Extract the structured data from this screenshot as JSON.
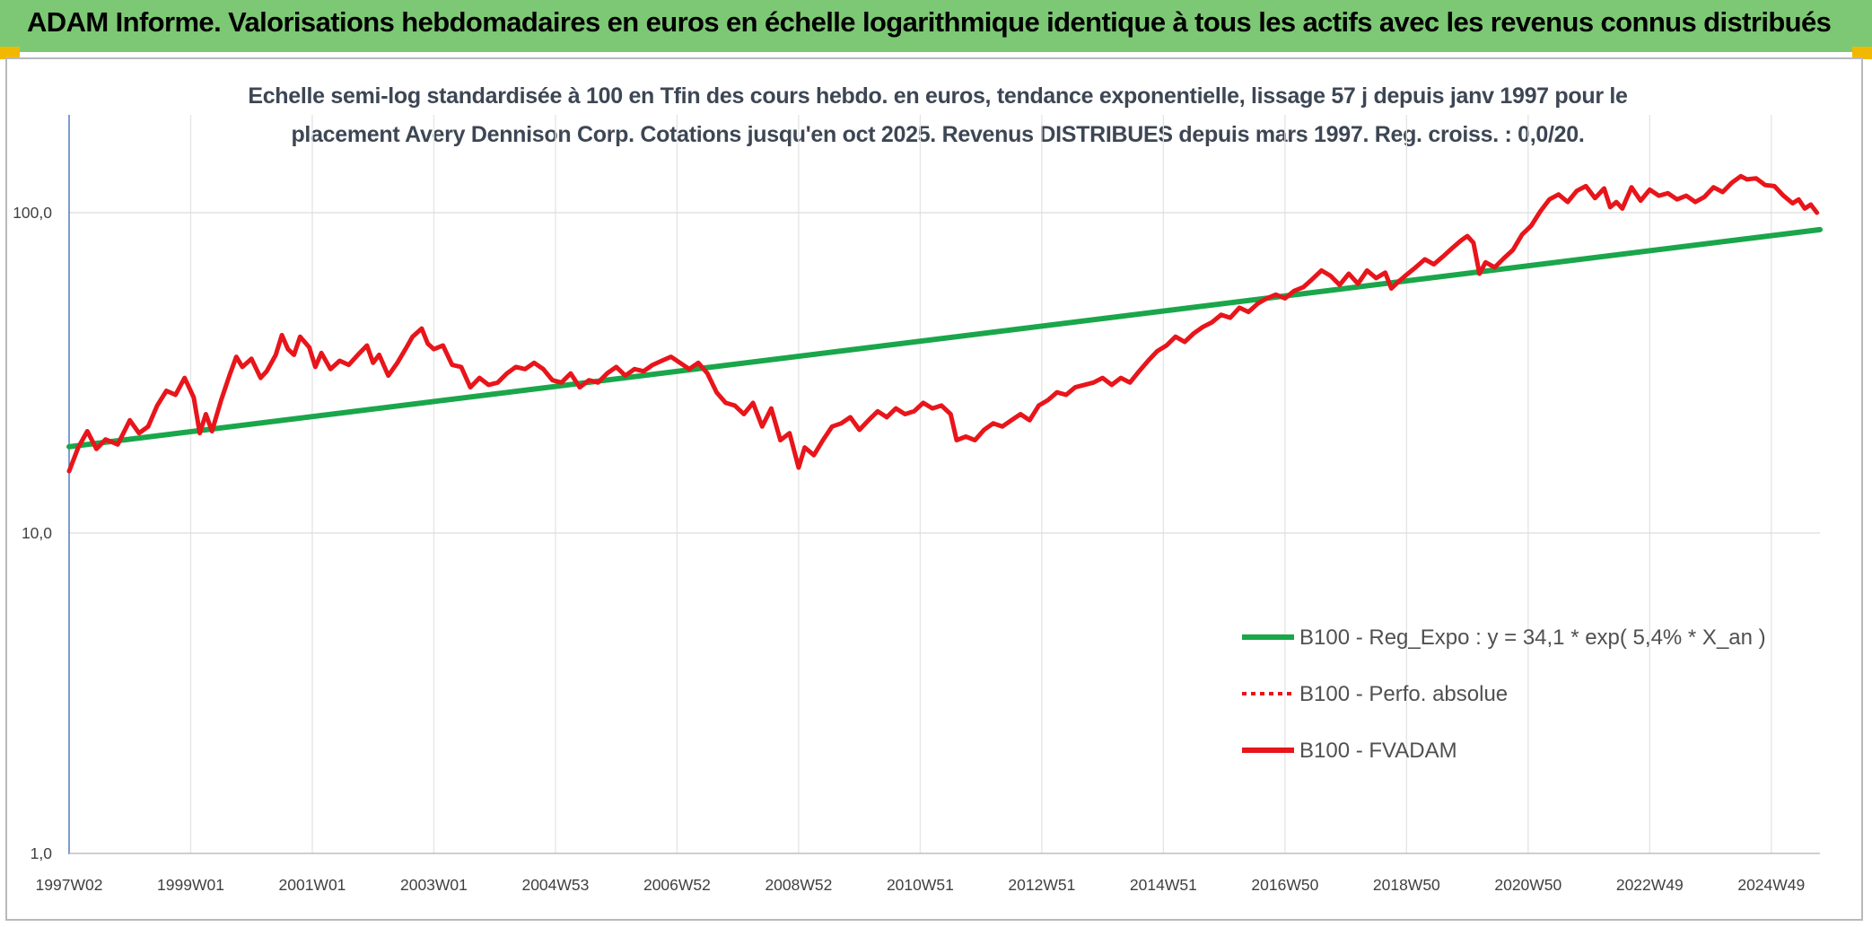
{
  "banner": {
    "title": "ADAM Informe. Valorisations hebdomadaires en euros en échelle logarithmique identique à tous les actifs avec les revenus connus distribués",
    "color": "#7dc874"
  },
  "chart_data": {
    "type": "line",
    "title_lines": [
      "Echelle semi-log standardisée à 100 en Tfin des cours hebdo. en euros, tendance exponentielle, lissage 57 j depuis janv 1997 pour le",
      "placement Avery Dennison Corp. Cotations jusqu'en oct 2025. Revenus DISTRIBUES depuis mars 1997. Reg. croiss. : 0,0/20."
    ],
    "y_scale": "log",
    "ylim": [
      1,
      200
    ],
    "y_ticks": [
      "1,0",
      "10,0",
      "100,0"
    ],
    "xlim": [
      1997.0,
      2025.8
    ],
    "x_ticks": [
      {
        "label": "1997W02",
        "x": 1997.0
      },
      {
        "label": "1999W01",
        "x": 1999.0
      },
      {
        "label": "2001W01",
        "x": 2001.0
      },
      {
        "label": "2003W01",
        "x": 2003.0
      },
      {
        "label": "2004W53",
        "x": 2005.0
      },
      {
        "label": "2006W52",
        "x": 2007.0
      },
      {
        "label": "2008W52",
        "x": 2009.0
      },
      {
        "label": "2010W51",
        "x": 2011.0
      },
      {
        "label": "2012W51",
        "x": 2013.0
      },
      {
        "label": "2014W51",
        "x": 2015.0
      },
      {
        "label": "2016W50",
        "x": 2017.0
      },
      {
        "label": "2018W50",
        "x": 2019.0
      },
      {
        "label": "2020W50",
        "x": 2021.0
      },
      {
        "label": "2022W49",
        "x": 2023.0
      },
      {
        "label": "2024W49",
        "x": 2025.0
      }
    ],
    "grid": true,
    "legend_position": "bottom-right",
    "series": [
      {
        "name": "B100 - Reg_Expo : y = 34,1 * exp( 5,4% *  X_an )",
        "color": "#1aa64a",
        "style": "solid",
        "points": [
          [
            1997.0,
            18.6
          ],
          [
            2025.8,
            88.5
          ]
        ]
      },
      {
        "name": "B100 - Perfo. absolue",
        "color": "#e8151b",
        "style": "dotted",
        "points": []
      },
      {
        "name": "B100 - FVADAM",
        "color": "#e8151b",
        "style": "solid",
        "points": [
          [
            1997.0,
            15.6
          ],
          [
            1997.15,
            18.5
          ],
          [
            1997.3,
            20.8
          ],
          [
            1997.45,
            18.3
          ],
          [
            1997.6,
            19.6
          ],
          [
            1997.8,
            18.9
          ],
          [
            1998.0,
            22.5
          ],
          [
            1998.15,
            20.5
          ],
          [
            1998.3,
            21.5
          ],
          [
            1998.45,
            25.0
          ],
          [
            1998.6,
            27.8
          ],
          [
            1998.75,
            27.0
          ],
          [
            1998.9,
            30.5
          ],
          [
            1999.05,
            26.5
          ],
          [
            1999.15,
            20.5
          ],
          [
            1999.25,
            23.5
          ],
          [
            1999.35,
            20.8
          ],
          [
            1999.5,
            26.0
          ],
          [
            1999.65,
            31.5
          ],
          [
            1999.75,
            35.5
          ],
          [
            1999.85,
            33.0
          ],
          [
            2000.0,
            35.0
          ],
          [
            2000.15,
            30.5
          ],
          [
            2000.25,
            32.0
          ],
          [
            2000.4,
            36.0
          ],
          [
            2000.5,
            41.5
          ],
          [
            2000.6,
            37.5
          ],
          [
            2000.7,
            36.0
          ],
          [
            2000.8,
            41.0
          ],
          [
            2000.95,
            38.0
          ],
          [
            2001.05,
            33.0
          ],
          [
            2001.15,
            36.5
          ],
          [
            2001.3,
            32.5
          ],
          [
            2001.45,
            34.5
          ],
          [
            2001.6,
            33.5
          ],
          [
            2001.75,
            36.0
          ],
          [
            2001.9,
            38.5
          ],
          [
            2002.0,
            34.0
          ],
          [
            2002.1,
            36.0
          ],
          [
            2002.25,
            31.0
          ],
          [
            2002.4,
            34.0
          ],
          [
            2002.55,
            38.0
          ],
          [
            2002.65,
            41.0
          ],
          [
            2002.8,
            43.5
          ],
          [
            2002.9,
            39.0
          ],
          [
            2003.0,
            37.5
          ],
          [
            2003.15,
            38.5
          ],
          [
            2003.3,
            33.5
          ],
          [
            2003.45,
            33.0
          ],
          [
            2003.6,
            28.5
          ],
          [
            2003.75,
            30.5
          ],
          [
            2003.9,
            29.0
          ],
          [
            2004.05,
            29.5
          ],
          [
            2004.2,
            31.5
          ],
          [
            2004.35,
            33.0
          ],
          [
            2004.5,
            32.5
          ],
          [
            2004.65,
            34.0
          ],
          [
            2004.8,
            32.5
          ],
          [
            2004.95,
            30.0
          ],
          [
            2005.1,
            29.5
          ],
          [
            2005.25,
            31.5
          ],
          [
            2005.4,
            28.5
          ],
          [
            2005.55,
            30.0
          ],
          [
            2005.7,
            29.5
          ],
          [
            2005.85,
            31.5
          ],
          [
            2006.0,
            33.0
          ],
          [
            2006.15,
            31.0
          ],
          [
            2006.3,
            32.5
          ],
          [
            2006.45,
            32.0
          ],
          [
            2006.6,
            33.5
          ],
          [
            2006.75,
            34.5
          ],
          [
            2006.9,
            35.5
          ],
          [
            2007.05,
            34.0
          ],
          [
            2007.2,
            32.5
          ],
          [
            2007.35,
            34.0
          ],
          [
            2007.5,
            31.5
          ],
          [
            2007.65,
            27.5
          ],
          [
            2007.8,
            25.5
          ],
          [
            2007.95,
            25.0
          ],
          [
            2008.1,
            23.5
          ],
          [
            2008.25,
            25.5
          ],
          [
            2008.4,
            21.5
          ],
          [
            2008.55,
            24.5
          ],
          [
            2008.7,
            19.5
          ],
          [
            2008.85,
            20.5
          ],
          [
            2009.0,
            16.0
          ],
          [
            2009.1,
            18.5
          ],
          [
            2009.25,
            17.5
          ],
          [
            2009.4,
            19.5
          ],
          [
            2009.55,
            21.5
          ],
          [
            2009.7,
            22.0
          ],
          [
            2009.85,
            23.0
          ],
          [
            2010.0,
            21.0
          ],
          [
            2010.15,
            22.5
          ],
          [
            2010.3,
            24.0
          ],
          [
            2010.45,
            23.0
          ],
          [
            2010.6,
            24.5
          ],
          [
            2010.75,
            23.5
          ],
          [
            2010.9,
            24.0
          ],
          [
            2011.05,
            25.5
          ],
          [
            2011.2,
            24.5
          ],
          [
            2011.35,
            25.0
          ],
          [
            2011.5,
            23.5
          ],
          [
            2011.6,
            19.5
          ],
          [
            2011.75,
            20.0
          ],
          [
            2011.9,
            19.5
          ],
          [
            2012.05,
            21.0
          ],
          [
            2012.2,
            22.0
          ],
          [
            2012.35,
            21.5
          ],
          [
            2012.5,
            22.5
          ],
          [
            2012.65,
            23.5
          ],
          [
            2012.8,
            22.5
          ],
          [
            2012.95,
            25.0
          ],
          [
            2013.1,
            26.0
          ],
          [
            2013.25,
            27.5
          ],
          [
            2013.4,
            27.0
          ],
          [
            2013.55,
            28.5
          ],
          [
            2013.7,
            29.0
          ],
          [
            2013.85,
            29.5
          ],
          [
            2014.0,
            30.5
          ],
          [
            2014.15,
            29.0
          ],
          [
            2014.3,
            30.5
          ],
          [
            2014.45,
            29.5
          ],
          [
            2014.6,
            32.0
          ],
          [
            2014.75,
            34.5
          ],
          [
            2014.9,
            37.0
          ],
          [
            2015.05,
            38.5
          ],
          [
            2015.2,
            41.0
          ],
          [
            2015.35,
            39.5
          ],
          [
            2015.5,
            42.0
          ],
          [
            2015.65,
            44.0
          ],
          [
            2015.8,
            45.5
          ],
          [
            2015.95,
            48.0
          ],
          [
            2016.1,
            47.0
          ],
          [
            2016.25,
            50.5
          ],
          [
            2016.4,
            49.0
          ],
          [
            2016.55,
            52.0
          ],
          [
            2016.7,
            54.0
          ],
          [
            2016.85,
            55.5
          ],
          [
            2017.0,
            54.0
          ],
          [
            2017.15,
            57.0
          ],
          [
            2017.3,
            58.5
          ],
          [
            2017.45,
            62.0
          ],
          [
            2017.6,
            66.0
          ],
          [
            2017.75,
            63.5
          ],
          [
            2017.9,
            59.5
          ],
          [
            2018.05,
            64.5
          ],
          [
            2018.2,
            60.0
          ],
          [
            2018.35,
            66.0
          ],
          [
            2018.5,
            62.5
          ],
          [
            2018.65,
            65.0
          ],
          [
            2018.75,
            58.0
          ],
          [
            2018.85,
            60.5
          ],
          [
            2019.0,
            64.0
          ],
          [
            2019.15,
            67.5
          ],
          [
            2019.3,
            71.5
          ],
          [
            2019.45,
            69.0
          ],
          [
            2019.6,
            73.0
          ],
          [
            2019.75,
            77.5
          ],
          [
            2019.9,
            82.0
          ],
          [
            2020.0,
            84.5
          ],
          [
            2020.1,
            80.5
          ],
          [
            2020.2,
            64.5
          ],
          [
            2020.3,
            70.0
          ],
          [
            2020.45,
            67.5
          ],
          [
            2020.6,
            72.0
          ],
          [
            2020.75,
            76.5
          ],
          [
            2020.9,
            85.5
          ],
          [
            2021.05,
            91.0
          ],
          [
            2021.2,
            101.0
          ],
          [
            2021.35,
            110.0
          ],
          [
            2021.5,
            114.0
          ],
          [
            2021.65,
            108.0
          ],
          [
            2021.8,
            117.0
          ],
          [
            2021.95,
            121.0
          ],
          [
            2022.1,
            111.0
          ],
          [
            2022.25,
            119.0
          ],
          [
            2022.35,
            104.0
          ],
          [
            2022.45,
            108.0
          ],
          [
            2022.55,
            103.0
          ],
          [
            2022.7,
            120.0
          ],
          [
            2022.85,
            109.0
          ],
          [
            2023.0,
            118.0
          ],
          [
            2023.15,
            113.0
          ],
          [
            2023.3,
            115.0
          ],
          [
            2023.45,
            110.0
          ],
          [
            2023.6,
            113.0
          ],
          [
            2023.75,
            108.0
          ],
          [
            2023.9,
            112.0
          ],
          [
            2024.05,
            120.0
          ],
          [
            2024.2,
            116.0
          ],
          [
            2024.35,
            124.0
          ],
          [
            2024.5,
            130.0
          ],
          [
            2024.6,
            127.0
          ],
          [
            2024.75,
            128.0
          ],
          [
            2024.9,
            122.0
          ],
          [
            2025.05,
            121.0
          ],
          [
            2025.2,
            113.0
          ],
          [
            2025.35,
            107.0
          ],
          [
            2025.45,
            110.0
          ],
          [
            2025.55,
            103.0
          ],
          [
            2025.65,
            106.0
          ],
          [
            2025.75,
            100.0
          ]
        ]
      }
    ]
  }
}
